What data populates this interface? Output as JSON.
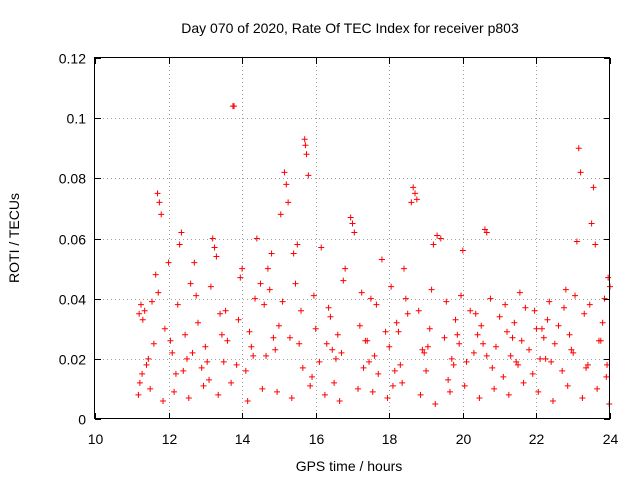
{
  "chart_data": {
    "type": "scatter",
    "title": "Day 070 of 2020, Rate Of TEC Index for receiver p803",
    "xlabel": "GPS time / hours",
    "ylabel": "ROTI / TECUs",
    "xlim": [
      10,
      24
    ],
    "ylim": [
      0,
      0.12
    ],
    "x_ticks": [
      10,
      12,
      14,
      16,
      18,
      20,
      22,
      24
    ],
    "x_tick_labels": [
      "10",
      "12",
      "14",
      "16",
      "18",
      "20",
      "22",
      "24"
    ],
    "y_ticks": [
      0,
      0.02,
      0.04,
      0.06,
      0.08,
      0.1,
      0.12
    ],
    "y_tick_labels": [
      "0",
      "0.02",
      "0.04",
      "0.06",
      "0.08",
      "0.1",
      "0.12"
    ],
    "grid": true,
    "marker": "plus",
    "color": "#ff0000",
    "series": [
      {
        "name": "ROTI",
        "x": [
          11.2,
          11.25,
          11.3,
          11.35,
          11.55,
          11.65,
          11.7,
          11.75,
          11.8,
          12.0,
          12.3,
          12.35,
          12.6,
          12.7,
          13.2,
          13.25,
          13.3,
          13.75,
          13.78,
          14.0,
          14.4,
          14.5,
          14.7,
          14.8,
          15.05,
          15.15,
          15.2,
          15.25,
          15.4,
          15.5,
          15.7,
          15.72,
          15.75,
          15.8,
          16.15,
          16.8,
          16.95,
          17.0,
          17.05,
          17.8,
          18.4,
          18.6,
          18.65,
          18.7,
          18.75,
          19.2,
          19.3,
          19.4,
          20.0,
          20.6,
          20.65,
          22.8,
          23.1,
          23.15,
          23.2,
          23.5,
          23.55,
          23.6,
          23.95,
          24.0,
          11.22,
          11.4,
          11.6,
          11.9,
          12.1,
          12.2,
          12.45,
          12.5,
          12.8,
          12.9,
          13.0,
          13.1,
          13.4,
          13.5,
          13.6,
          13.9,
          14.1,
          14.2,
          14.3,
          14.6,
          14.9,
          15.0,
          15.3,
          15.6,
          15.9,
          16.0,
          16.1,
          16.3,
          16.4,
          16.5,
          16.6,
          16.7,
          17.2,
          17.3,
          17.4,
          17.5,
          17.6,
          17.7,
          17.9,
          18.0,
          18.1,
          18.2,
          18.3,
          18.5,
          18.9,
          19.0,
          19.1,
          19.5,
          19.6,
          19.7,
          19.8,
          19.9,
          20.1,
          20.2,
          20.3,
          20.4,
          20.5,
          20.8,
          20.9,
          21.0,
          21.1,
          21.2,
          21.3,
          21.4,
          21.5,
          21.6,
          21.7,
          21.8,
          21.9,
          22.0,
          22.1,
          22.2,
          22.3,
          22.4,
          22.5,
          22.6,
          22.7,
          22.9,
          23.0,
          23.3,
          23.4,
          23.7,
          23.8,
          23.9,
          11.18,
          11.5,
          11.85,
          12.15,
          12.55,
          12.95,
          13.35,
          13.7,
          14.15,
          14.55,
          14.95,
          15.35,
          15.85,
          16.25,
          16.65,
          17.15,
          17.55,
          17.95,
          18.35,
          18.85,
          19.25,
          19.65,
          20.05,
          20.45,
          20.85,
          21.25,
          21.65,
          22.05,
          22.45,
          22.85,
          23.25,
          23.65,
          23.98,
          11.28,
          11.72,
          12.25,
          12.75,
          13.15,
          13.55,
          13.95,
          14.35,
          14.75,
          15.1,
          15.45,
          15.95,
          16.35,
          16.75,
          17.25,
          17.65,
          18.05,
          18.45,
          18.8,
          19.15,
          19.55,
          19.95,
          20.35,
          20.75,
          21.15,
          21.55,
          21.95,
          22.35,
          22.75,
          23.05,
          23.45,
          23.85,
          12.05,
          12.65,
          13.45,
          14.25,
          14.85,
          15.55,
          16.45,
          17.35,
          18.25,
          19.05,
          19.85,
          20.55,
          21.35,
          22.15,
          22.95,
          23.75,
          11.45,
          12.4,
          13.05,
          13.85,
          14.65,
          15.65,
          16.55,
          17.45,
          18.15,
          18.95,
          19.75,
          20.65,
          21.45,
          22.25,
          23.35,
          23.92
        ],
        "y": [
          0.035,
          0.038,
          0.033,
          0.036,
          0.039,
          0.048,
          0.075,
          0.072,
          0.068,
          0.052,
          0.058,
          0.062,
          0.045,
          0.052,
          0.06,
          0.057,
          0.054,
          0.104,
          0.104,
          0.05,
          0.06,
          0.045,
          0.05,
          0.055,
          0.068,
          0.082,
          0.078,
          0.072,
          0.055,
          0.058,
          0.093,
          0.091,
          0.088,
          0.081,
          0.057,
          0.05,
          0.067,
          0.065,
          0.062,
          0.053,
          0.05,
          0.072,
          0.077,
          0.075,
          0.073,
          0.058,
          0.061,
          0.06,
          0.056,
          0.063,
          0.062,
          0.043,
          0.059,
          0.09,
          0.082,
          0.065,
          0.077,
          0.058,
          0.047,
          0.044,
          0.012,
          0.018,
          0.025,
          0.03,
          0.022,
          0.015,
          0.028,
          0.02,
          0.032,
          0.017,
          0.024,
          0.013,
          0.035,
          0.019,
          0.026,
          0.033,
          0.016,
          0.029,
          0.021,
          0.038,
          0.023,
          0.031,
          0.027,
          0.036,
          0.014,
          0.03,
          0.019,
          0.025,
          0.034,
          0.012,
          0.028,
          0.022,
          0.031,
          0.017,
          0.026,
          0.04,
          0.021,
          0.015,
          0.029,
          0.024,
          0.011,
          0.032,
          0.018,
          0.035,
          0.023,
          0.016,
          0.03,
          0.027,
          0.013,
          0.02,
          0.033,
          0.025,
          0.019,
          0.036,
          0.022,
          0.028,
          0.031,
          0.017,
          0.024,
          0.034,
          0.014,
          0.029,
          0.021,
          0.032,
          0.018,
          0.026,
          0.037,
          0.023,
          0.015,
          0.03,
          0.02,
          0.027,
          0.033,
          0.019,
          0.025,
          0.031,
          0.016,
          0.028,
          0.022,
          0.035,
          0.018,
          0.026,
          0.032,
          0.014,
          0.008,
          0.01,
          0.006,
          0.009,
          0.007,
          0.011,
          0.008,
          0.012,
          0.006,
          0.01,
          0.009,
          0.007,
          0.011,
          0.008,
          0.006,
          0.01,
          0.009,
          0.007,
          0.012,
          0.008,
          0.005,
          0.009,
          0.011,
          0.007,
          0.01,
          0.008,
          0.012,
          0.009,
          0.006,
          0.011,
          0.007,
          0.01,
          0.005,
          0.015,
          0.042,
          0.038,
          0.041,
          0.044,
          0.036,
          0.047,
          0.04,
          0.043,
          0.039,
          0.045,
          0.041,
          0.037,
          0.046,
          0.042,
          0.038,
          0.044,
          0.04,
          0.036,
          0.043,
          0.039,
          0.041,
          0.035,
          0.04,
          0.038,
          0.042,
          0.036,
          0.039,
          0.037,
          0.041,
          0.038,
          0.04,
          0.026,
          0.022,
          0.028,
          0.024,
          0.027,
          0.025,
          0.023,
          0.026,
          0.029,
          0.024,
          0.028,
          0.025,
          0.027,
          0.03,
          0.023,
          0.026,
          0.02,
          0.016,
          0.019,
          0.018,
          0.021,
          0.017,
          0.02,
          0.019,
          0.016,
          0.022,
          0.018,
          0.021,
          0.019,
          0.02,
          0.017,
          0.018
        ]
      }
    ]
  }
}
